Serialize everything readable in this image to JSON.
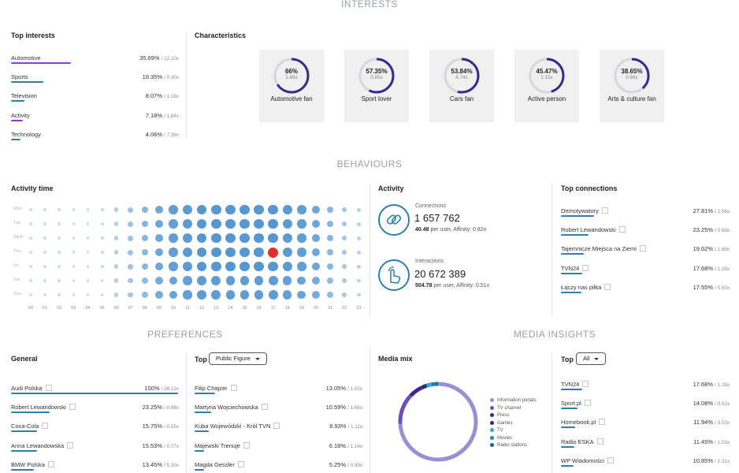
{
  "sections": {
    "interests": "INTERESTS",
    "behaviours": "BEHAVIOURS",
    "preferences": "PREFERENCES",
    "media_insights": "MEDIA INSIGHTS"
  },
  "colors": {
    "accent_purple": "#8a3fd1",
    "accent_blue": "#2d80a8",
    "dot_blue": "#5b9bd5",
    "highlight_red": "#e0302b",
    "ring": "#3b2a8c"
  },
  "top_interests": {
    "title": "Top interests",
    "items": [
      {
        "label": "Automotive",
        "pct": "35.69%",
        "mult": "/ 12.10x",
        "share": 0.3569,
        "color": "#8a3fd1"
      },
      {
        "label": "Sports",
        "pct": "19.35%",
        "mult": "/ 0.30x",
        "share": 0.1935,
        "color": "#2d80a8"
      },
      {
        "label": "Television",
        "pct": "8.07%",
        "mult": "/ 1.16x",
        "share": 0.0807,
        "color": "#2d80a8"
      },
      {
        "label": "Activity",
        "pct": "7.18%",
        "mult": "/ 1.84x",
        "share": 0.0718,
        "color": "#8a3fd1"
      },
      {
        "label": "Technology",
        "pct": "4.06%",
        "mult": "/ 7.26x",
        "share": 0.0406,
        "color": "#2d80a8"
      }
    ]
  },
  "characteristics": {
    "title": "Characteristics",
    "cards": [
      {
        "pct": "66%",
        "mult": "3.89x",
        "label": "Automotive fan",
        "share": 0.66
      },
      {
        "pct": "57.35%",
        "mult": "0.85x",
        "label": "Sport lover",
        "share": 0.5735
      },
      {
        "pct": "53.84%",
        "mult": "4.74x",
        "label": "Cars fan",
        "share": 0.5384
      },
      {
        "pct": "45.47%",
        "mult": "1.15x",
        "label": "Active person",
        "share": 0.4547
      },
      {
        "pct": "38.65%",
        "mult": "0.89x",
        "label": "Arts & culture fan",
        "share": 0.3865
      }
    ]
  },
  "activity_time": {
    "title": "Activity time",
    "days": [
      "Mon",
      "Tue",
      "Wed",
      "Thu",
      "Fri",
      "Sat",
      "Sun"
    ],
    "hours": [
      "00",
      "01",
      "02",
      "03",
      "04",
      "05",
      "06",
      "07",
      "08",
      "09",
      "10",
      "11",
      "12",
      "13",
      "14",
      "15",
      "16",
      "17",
      "18",
      "19",
      "20",
      "21",
      "22",
      "23"
    ],
    "hour_intensity": [
      0.05,
      0.05,
      0.05,
      0.05,
      0.05,
      0.1,
      0.25,
      0.4,
      0.55,
      0.75,
      0.85,
      0.9,
      0.95,
      0.95,
      0.95,
      0.95,
      0.95,
      0.95,
      0.9,
      0.85,
      0.75,
      0.55,
      0.35,
      0.2
    ],
    "peak": {
      "day": 3,
      "hour": 17
    }
  },
  "activity": {
    "title": "Activity",
    "connections": {
      "label": "Connections",
      "value": "1 657 762",
      "per_user": "40.48",
      "rest": "per user, Affinity: 0.82x"
    },
    "interactions": {
      "label": "Interactions",
      "value": "20 672 389",
      "per_user": "504.78",
      "rest": "per user, Affinity: 0.51x"
    }
  },
  "top_connections": {
    "title": "Top connections",
    "items": [
      {
        "label": "Demotywatory",
        "pct": "27.81%",
        "mult": "/ 1.56x",
        "share": 0.2781
      },
      {
        "label": "Robert Lewandowski",
        "pct": "23.25%",
        "mult": "/ 0.68x",
        "share": 0.2325
      },
      {
        "label": "Tajemnicze Miejsca na Ziemi",
        "pct": "19.62%",
        "mult": "/ 1.88x",
        "share": 0.1962
      },
      {
        "label": "TVN24",
        "pct": "17.68%",
        "mult": "/ 1.28x",
        "share": 0.1768
      },
      {
        "label": "Łączy nas piłka",
        "pct": "17.55%",
        "mult": "/ 0.50x",
        "share": 0.1755
      }
    ]
  },
  "general": {
    "title": "General",
    "items": [
      {
        "label": "Audi Polska",
        "pct": "100%",
        "mult": "/ 26.12x",
        "share": 1.0
      },
      {
        "label": "Robert Lewandowski",
        "pct": "23.25%",
        "mult": "/ 0.68x",
        "share": 0.2325
      },
      {
        "label": "Coca-Cola",
        "pct": "15.75%",
        "mult": "/ 0.55x",
        "share": 0.1575
      },
      {
        "label": "Anna Lewandowska",
        "pct": "15.53%",
        "mult": "/ 0.77x",
        "share": 0.1553
      },
      {
        "label": "BMW Polska",
        "pct": "13.45%",
        "mult": "/ 5.30x",
        "share": 0.1345
      }
    ]
  },
  "top_preferences": {
    "title": "Top",
    "dropdown": "Public Figure",
    "items": [
      {
        "label": "Filip Chajzer",
        "pct": "13.05%",
        "mult": "/ 1.02x",
        "share": 0.1305
      },
      {
        "label": "Martyna Wojciechowska",
        "pct": "10.59%",
        "mult": "/ 1.66x",
        "share": 0.1059
      },
      {
        "label": "Kuba Wojewódzki - Król TVN",
        "pct": "8.93%",
        "mult": "/ 1.11x",
        "share": 0.0893
      },
      {
        "label": "Majewski Trenuje",
        "pct": "6.18%",
        "mult": "/ 1.14x",
        "share": 0.0618
      },
      {
        "label": "Magda Gessler",
        "pct": "5.25%",
        "mult": "/ 0.99x",
        "share": 0.0525
      }
    ]
  },
  "media_mix": {
    "title": "Media mix",
    "legend": [
      {
        "label": "Information portals",
        "color": "#9b8fd3"
      },
      {
        "label": "TV channel",
        "color": "#6a51b8"
      },
      {
        "label": "Press",
        "color": "#3b2a8c"
      },
      {
        "label": "Games",
        "color": "#2a2f6b"
      },
      {
        "label": "TV",
        "color": "#3aa0d8"
      },
      {
        "label": "Movies",
        "color": "#2a7fb0"
      },
      {
        "label": "Radio stations",
        "color": "#1e5f8a"
      }
    ],
    "shares": [
      0.74,
      0.13,
      0.06,
      0.02,
      0.02,
      0.02,
      0.01
    ]
  },
  "top_media": {
    "title": "Top",
    "dropdown": "All",
    "items": [
      {
        "label": "TVN24",
        "pct": "17.68%",
        "mult": "/ 1.28x",
        "share": 0.1768
      },
      {
        "label": "Sport.pl",
        "pct": "14.08%",
        "mult": "/ 0.51x",
        "share": 0.1408
      },
      {
        "label": "Homebook.pl",
        "pct": "11.94%",
        "mult": "/ 3.53x",
        "share": 0.1194
      },
      {
        "label": "Radio ESKA",
        "pct": "11.45%",
        "mult": "/ 1.03x",
        "share": 0.1145
      },
      {
        "label": "WP Wiadomości",
        "pct": "10.85%",
        "mult": "/ 1.31x",
        "share": 0.1085
      }
    ]
  }
}
